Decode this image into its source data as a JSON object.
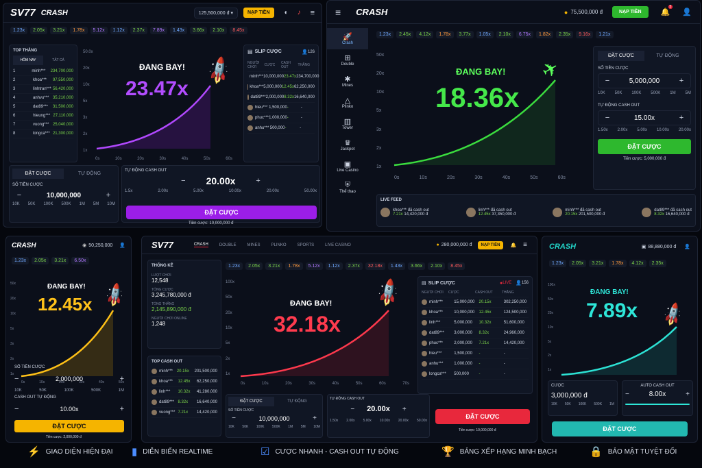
{
  "p1": {
    "logo": "SV77",
    "title": "CRASH",
    "balance": "125,500,000 đ",
    "nap": "NẠP TIỀN",
    "mults": [
      "1.23x",
      "2.05x",
      "3.21x",
      "1.78x",
      "5.12x",
      "1.12x",
      "2.37x",
      "7.89x",
      "1.43x",
      "3.66x",
      "2.10x",
      "8.45x"
    ],
    "top_title": "TOP THẮNG",
    "tab_today": "HÔM NAY",
    "tab_all": "TẤT CẢ",
    "leaders": [
      [
        "1",
        "minh***",
        "234,700,000"
      ],
      [
        "2",
        "khoa***",
        "97,550,000"
      ],
      [
        "3",
        "linhtran***",
        "56,420,000"
      ],
      [
        "4",
        "anhvu***",
        "35,210,000"
      ],
      [
        "5",
        "dat89***",
        "31,500,000"
      ],
      [
        "6",
        "hieung***",
        "27,110,000"
      ],
      [
        "7",
        "vuong***",
        "25,040,000"
      ],
      [
        "8",
        "longca***",
        "21,300,000"
      ]
    ],
    "flying": "ĐANG BAY!",
    "mult": "23.47x",
    "yaxis": [
      "50.0x",
      "20x",
      "10x",
      "5x",
      "3x",
      "2x",
      "1x"
    ],
    "xaxis": [
      "0s",
      "10s",
      "20s",
      "30s",
      "40s",
      "50s",
      "60s"
    ],
    "slip": "SLIP CƯỢC",
    "slip_count": "126",
    "slip_headers": [
      "NGƯỜI CHƠI",
      "CƯỢC",
      "CASH OUT",
      "THẮNG"
    ],
    "slip_rows": [
      [
        "minh***",
        "10,000,000",
        "23.47x",
        "234,700,000"
      ],
      [
        "khoa***",
        "5,000,000",
        "12.45x",
        "62,250,000"
      ],
      [
        "dat89***",
        "2,000,000",
        "8.32x",
        "16,640,000"
      ],
      [
        "hieu***",
        "1,500,000",
        "-",
        "-"
      ],
      [
        "phuc***",
        "1,000,000",
        "-",
        "-"
      ],
      [
        "anhu***",
        "500,000",
        "-",
        "-"
      ]
    ],
    "bet_tab": "ĐẶT CƯỢC",
    "auto_tab": "TỰ ĐỘNG",
    "amount_label": "SỐ TIỀN CƯỢC",
    "amount": "10,000,000",
    "quick": [
      "10K",
      "50K",
      "100K",
      "500K",
      "1M",
      "5M",
      "10M"
    ],
    "auto_label": "TỰ ĐỘNG CASH OUT",
    "auto_val": "20.00x",
    "auto_quick": [
      "1.5x",
      "2.00x",
      "5.00x",
      "10.00x",
      "20.00x",
      "50.00x"
    ],
    "bet_btn": "ĐẶT CƯỢC",
    "bet_note": "Tiền cược: 10,000,000 đ"
  },
  "p2": {
    "title": "CRASH",
    "balance": "75,500,000 đ",
    "nap": "NẠP TIỀN",
    "notif": "5",
    "nav": [
      "Crash",
      "Double",
      "Mines",
      "Plinko",
      "Tower",
      "Jackpot",
      "Live Casino",
      "Thể thao"
    ],
    "mults": [
      "1.23x",
      "2.45x",
      "4.12x",
      "1.78x",
      "3.77x",
      "1.05x",
      "2.10x",
      "6.75x",
      "1.82x",
      "2.35x",
      "9.16x",
      "1.21x"
    ],
    "flying": "ĐANG BAY!",
    "mult": "18.36x",
    "yaxis": [
      "50x",
      "20x",
      "10x",
      "5x",
      "3x",
      "2x",
      "1x"
    ],
    "xaxis": [
      "0s",
      "10s",
      "20s",
      "30s",
      "40s",
      "50s",
      "60s"
    ],
    "bet_tab": "ĐẶT CƯỢC",
    "auto_tab": "TỰ ĐỘNG",
    "amount_label": "SỐ TIỀN CƯỢC",
    "amount": "5,000,000",
    "quick": [
      "10K",
      "50K",
      "100K",
      "500K",
      "1M",
      "5M"
    ],
    "auto_label": "TỰ ĐỘNG CASH OUT",
    "auto_val": "15.00x",
    "auto_quick": [
      "1.50x",
      "2.00x",
      "5.00x",
      "10.00x",
      "20.00x"
    ],
    "bet_btn": "ĐẶT CƯỢC",
    "bet_note": "Tiền cược: 5,000,000 đ",
    "feed_title": "LIVE FEED",
    "feed": [
      [
        "khoa***",
        "đã cash out",
        "7.21x",
        "14,420,000 đ"
      ],
      [
        "linh***",
        "đã cash out",
        "12.45x",
        "37,350,000 đ"
      ],
      [
        "minh***",
        "đã cash out",
        "20.15x",
        "201,500,000 đ"
      ],
      [
        "dat89***",
        "đã cash out",
        "8.32x",
        "16,640,000 đ"
      ]
    ]
  },
  "p3": {
    "title": "CRASH",
    "balance": "50,250,000",
    "mults": [
      "1.23x",
      "2.05x",
      "3.21x",
      "6.50x"
    ],
    "flying": "ĐANG BAY!",
    "mult": "12.45x",
    "yaxis": [
      "50x",
      "20x",
      "10x",
      "5x",
      "3x",
      "2x",
      "1x"
    ],
    "xaxis": [
      "0s",
      "10s",
      "20s",
      "30s",
      "40s",
      "50s"
    ],
    "amount_label": "SỐ TIỀN CƯỢC",
    "amount": "2,000,000",
    "quick": [
      "10K",
      "50K",
      "100K",
      "500K",
      "1M"
    ],
    "auto_label": "CASH OUT TỰ ĐỘNG",
    "auto_val": "10.00x",
    "bet_btn": "ĐẶT CƯỢC",
    "bet_note": "Tiền cược: 2,000,000 đ"
  },
  "p4": {
    "logo": "SV77",
    "nav": [
      "CRASH",
      "DOUBLE",
      "MINES",
      "PLINKO",
      "SPORTS",
      "LIVE CASINO"
    ],
    "balance": "280,000,000 đ",
    "nap": "NẠP TIỀN",
    "stats_title": "THỐNG KÊ",
    "s1l": "LƯỢT CHƠI",
    "s1v": "12,548",
    "s2l": "TỔNG CƯỢC",
    "s2v": "3,245,780,000 đ",
    "s3l": "TỔNG THẮNG",
    "s3v": "2,145,890,000 đ",
    "s4l": "NGƯỜI CHƠI ONLINE",
    "s4v": "1,248",
    "top_title": "TOP CASH OUT",
    "top": [
      [
        "minh***",
        "20.15x",
        "201,500,000"
      ],
      [
        "khoa***",
        "12.45x",
        "62,250,000"
      ],
      [
        "linh***",
        "10.32x",
        "41,280,000"
      ],
      [
        "dat89***",
        "8.32x",
        "16,640,000"
      ],
      [
        "vuong***",
        "7.21x",
        "14,420,000"
      ]
    ],
    "mults": [
      "1.23x",
      "2.05x",
      "3.21x",
      "1.78x",
      "5.12x",
      "1.12x",
      "2.37x",
      "32.18x",
      "1.43x",
      "3.66x",
      "2.10x",
      "8.45x"
    ],
    "flying": "ĐANG BAY!",
    "mult": "32.18x",
    "yaxis": [
      "100x",
      "50x",
      "20x",
      "10x",
      "5x",
      "2x",
      "1x"
    ],
    "xaxis": [
      "0s",
      "10s",
      "20s",
      "30s",
      "40s",
      "50s",
      "60s",
      "70s"
    ],
    "slip": "SLIP CƯỢC",
    "live": "LIVE",
    "slip_count": "156",
    "slip_headers": [
      "NGƯỜI CHƠI",
      "CƯỢC",
      "CASH OUT",
      "THẮNG"
    ],
    "slip_rows": [
      [
        "minh***",
        "15,000,000",
        "20.15x",
        "302,250,000"
      ],
      [
        "khoa***",
        "10,000,000",
        "12.45x",
        "124,500,000"
      ],
      [
        "linh***",
        "5,000,000",
        "10.32x",
        "51,600,000"
      ],
      [
        "dat89***",
        "3,000,000",
        "8.32x",
        "24,960,000"
      ],
      [
        "phuc***",
        "2,000,000",
        "7.21x",
        "14,420,000"
      ],
      [
        "hieu***",
        "1,500,000",
        "-",
        "-"
      ],
      [
        "anhu***",
        "1,000,000",
        "-",
        "-"
      ],
      [
        "longca***",
        "500,000",
        "-",
        "-"
      ]
    ],
    "bet_tab": "ĐẶT CƯỢC",
    "auto_tab": "TỰ ĐỘNG",
    "amount_label": "SỐ TIỀN CƯỢC",
    "amount": "10,000,000",
    "quick": [
      "10K",
      "50K",
      "100K",
      "500K",
      "1M",
      "5M",
      "10M"
    ],
    "auto_label": "TỰ ĐỘNG CASH OUT",
    "auto_val": "20.00x",
    "auto_quick": [
      "1.50x",
      "2.00x",
      "5.00x",
      "10.00x",
      "20.00x",
      "50.00x"
    ],
    "bet_btn": "ĐẶT CƯỢC",
    "bet_note": "Tiền cược: 10,000,000 đ"
  },
  "p5": {
    "title": "CRASH",
    "balance": "88,880,000 đ",
    "mults": [
      "1.23x",
      "2.05x",
      "3.21x",
      "1.78x",
      "4.12x",
      "2.35x"
    ],
    "flying": "ĐANG BAY!",
    "mult": "7.89x",
    "yaxis": [
      "100x",
      "50x",
      "20x",
      "10x",
      "5x",
      "2x",
      "1x"
    ],
    "amount_label": "CƯỢC",
    "amount": "3,000,000 đ",
    "quick": [
      "10K",
      "50K",
      "100K",
      "500K",
      "1M"
    ],
    "auto_label": "AUTO CASH OUT",
    "auto_val": "8.00x",
    "bet_btn": "ĐẶT CƯỢC"
  },
  "features": [
    "GIAO DIỆN HIỆN ĐẠI",
    "DIỄN BIẾN REALTIME",
    "CƯỢC NHANH - CASH OUT TỰ ĐỘNG",
    "BẢNG XẾP HẠNG MINH BẠCH",
    "BẢO MẬT TUYỆT ĐỐI"
  ],
  "colors": {
    "purple": "#a020f0",
    "green": "#2eb82e",
    "yellow": "#f5b400",
    "red": "#e8283c",
    "teal": "#22b8b0"
  }
}
